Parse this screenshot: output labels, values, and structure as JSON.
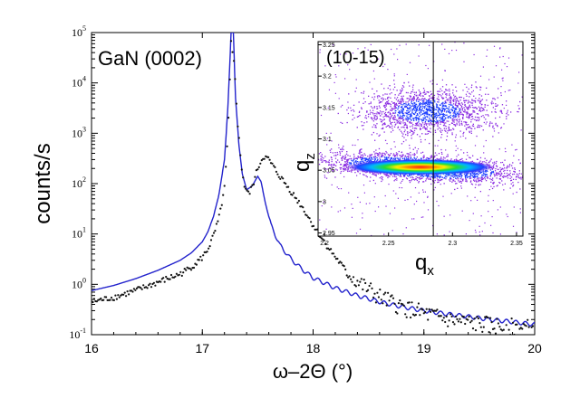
{
  "chart_data": [
    {
      "type": "line",
      "annotation": "GaN (0002)",
      "xlabel": "ω–2Θ  (°)",
      "ylabel": "counts/s",
      "xlim": [
        16,
        20
      ],
      "ylim": [
        0.1,
        100000
      ],
      "yscale": "log",
      "x_ticks": [
        "16",
        "17",
        "18",
        "19",
        "20"
      ],
      "y_ticks": [
        {
          "base": "10",
          "exp": "-1",
          "value": 0.1
        },
        {
          "base": "10",
          "exp": "0",
          "value": 1
        },
        {
          "base": "10",
          "exp": "1",
          "value": 10
        },
        {
          "base": "10",
          "exp": "2",
          "value": 100
        },
        {
          "base": "10",
          "exp": "3",
          "value": 1000
        },
        {
          "base": "10",
          "exp": "4",
          "value": 10000
        },
        {
          "base": "10",
          "exp": "5",
          "value": 100000
        }
      ],
      "series": [
        {
          "style": "line",
          "color": "#2222cc",
          "x": [
            16.0,
            16.2,
            16.4,
            16.6,
            16.8,
            16.9,
            17.0,
            17.05,
            17.1,
            17.15,
            17.2,
            17.23,
            17.26,
            17.28,
            17.3,
            17.33,
            17.36,
            17.4,
            17.45,
            17.5,
            17.53,
            17.57,
            17.62,
            17.7,
            17.8,
            17.9,
            18.0,
            18.2,
            18.4,
            18.6,
            18.8,
            19.0,
            19.2,
            19.4,
            19.6,
            19.8,
            20.0
          ],
          "y": [
            0.75,
            0.95,
            1.3,
            1.9,
            3.0,
            4.2,
            7,
            11,
            22,
            60,
            300,
            3000,
            100000,
            100000,
            5000,
            600,
            160,
            75,
            90,
            140,
            110,
            40,
            15,
            6,
            3.2,
            2.0,
            1.35,
            0.85,
            0.6,
            0.45,
            0.36,
            0.3,
            0.26,
            0.23,
            0.2,
            0.18,
            0.16
          ]
        },
        {
          "style": "points",
          "color": "#111111",
          "x": [
            16.0,
            16.2,
            16.4,
            16.6,
            16.8,
            16.9,
            17.0,
            17.05,
            17.1,
            17.15,
            17.2,
            17.23,
            17.26,
            17.29,
            17.32,
            17.35,
            17.38,
            17.42,
            17.46,
            17.5,
            17.55,
            17.6,
            17.65,
            17.7,
            17.8,
            17.9,
            18.0,
            18.1,
            18.2,
            18.3,
            18.4,
            18.6,
            18.8,
            19.0,
            19.2,
            19.4,
            19.6,
            19.8,
            20.0
          ],
          "y": [
            0.45,
            0.55,
            0.75,
            1.1,
            1.6,
            2.2,
            3.4,
            5,
            9,
            20,
            80,
            800,
            60000,
            20000,
            1500,
            250,
            90,
            60,
            100,
            200,
            350,
            300,
            200,
            140,
            70,
            35,
            15,
            7,
            3.5,
            1.8,
            1.1,
            0.55,
            0.35,
            0.26,
            0.2,
            0.17,
            0.15,
            0.14,
            0.13
          ]
        }
      ]
    },
    {
      "type": "heatmap",
      "title": "(10-15)",
      "xlabel": "q",
      "xlabel_sub": "x",
      "ylabel": "q",
      "ylabel_sub": "z",
      "xlim": [
        2.195,
        2.355
      ],
      "ylim": [
        2.945,
        3.255
      ],
      "x_ticks": [
        "2.2",
        "2.25",
        "2.3",
        "2.35"
      ],
      "y_ticks": [
        "2.95",
        "3",
        "3.05",
        "3.1",
        "3.15",
        "3.2",
        "3.25"
      ],
      "marker_line_x": 2.285,
      "lobes": [
        {
          "qx": 2.275,
          "qz": 3.055,
          "spread_qx": 0.045,
          "spread_qz": 0.017,
          "intensity": "high"
        },
        {
          "qx": 2.28,
          "qz": 3.145,
          "spread_qx": 0.03,
          "spread_qz": 0.03,
          "intensity": "low"
        }
      ],
      "colors": [
        "#8a2be2",
        "#1e40ff",
        "#00b7ff",
        "#22dd33",
        "#ffee00",
        "#ff8800",
        "#ff1a1a"
      ]
    }
  ]
}
